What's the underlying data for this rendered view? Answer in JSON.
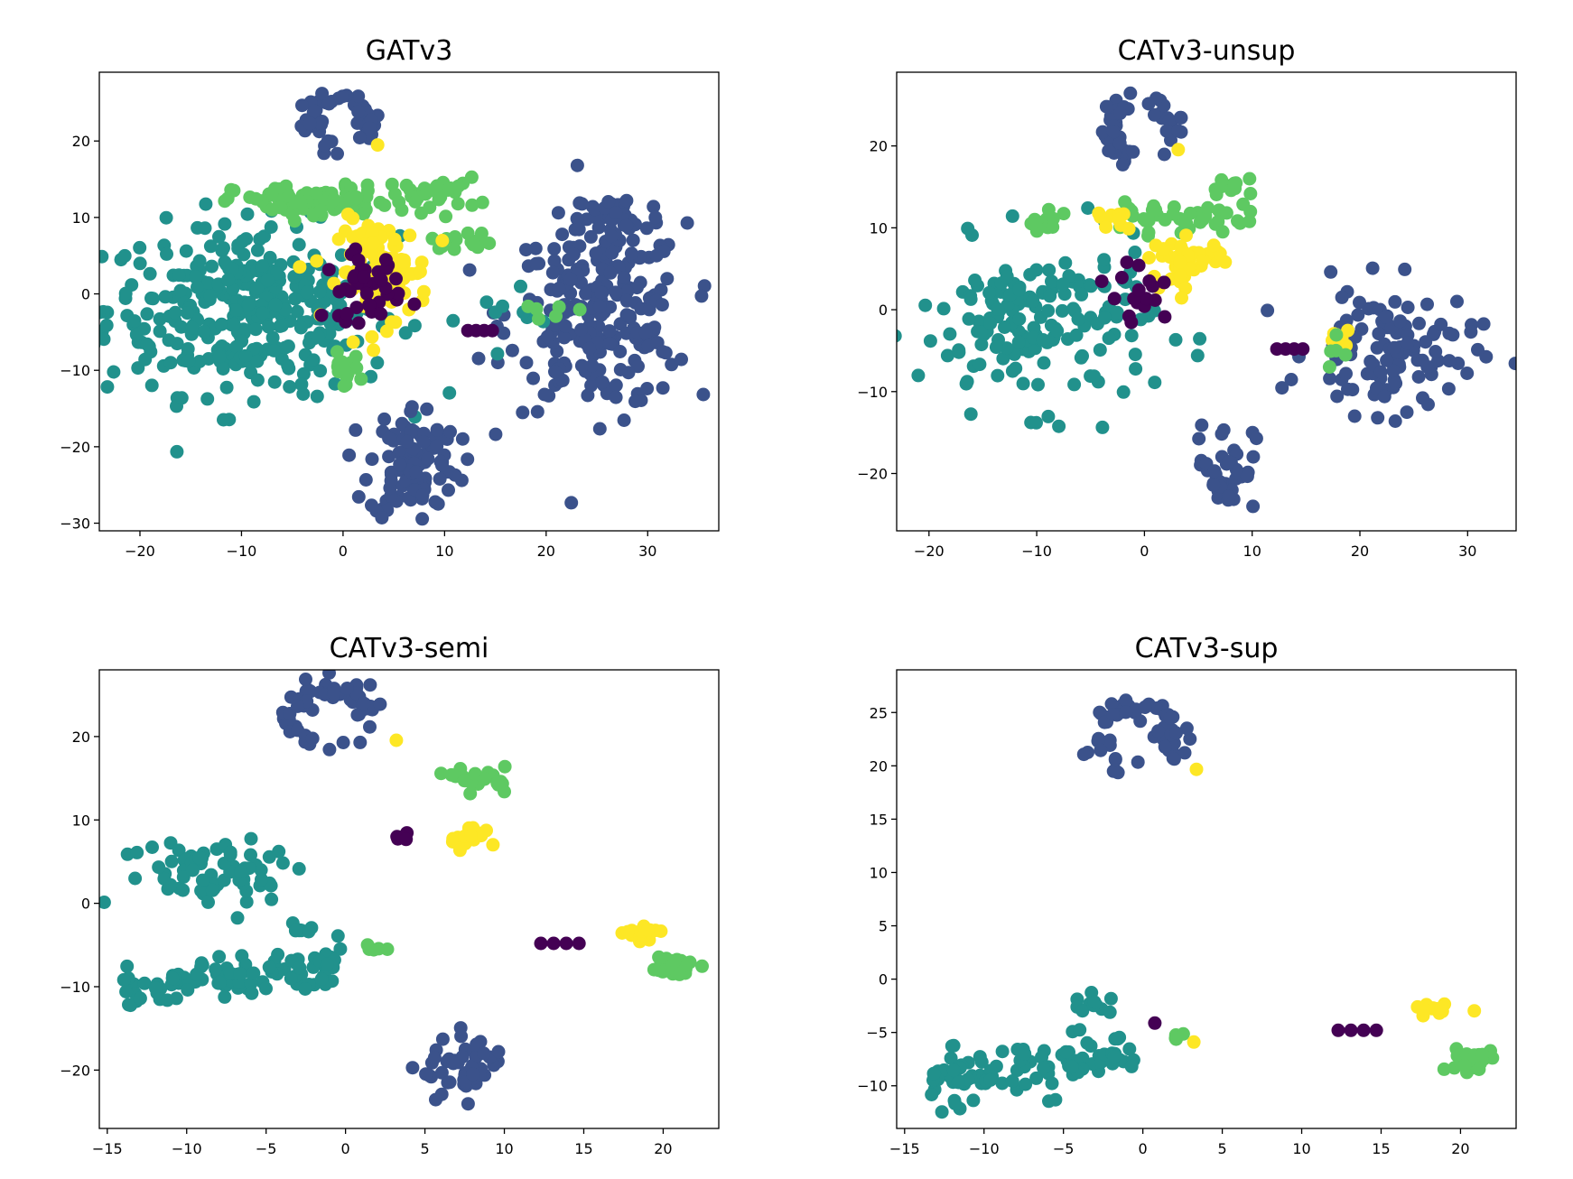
{
  "chart_data": [
    {
      "type": "scatter",
      "title": "GATv3",
      "xlabel": "",
      "ylabel": "",
      "xlim": [
        -24,
        37
      ],
      "ylim": [
        -31,
        29
      ],
      "xticks": [
        -20,
        -10,
        0,
        10,
        20,
        30
      ],
      "yticks": [
        -30,
        -20,
        -10,
        0,
        10,
        20
      ],
      "colors": {
        "purple": "#440154",
        "navy": "#3b528b",
        "teal": "#21918c",
        "green": "#5ec962",
        "yellow": "#fde725"
      },
      "clusters": [
        {
          "color": "teal",
          "shape": "ellipse",
          "cx": -9,
          "cy": -2,
          "sx": 13,
          "sy": 10,
          "n": 360
        },
        {
          "color": "navy",
          "shape": "ellipse",
          "cx": 25,
          "cy": -3,
          "sx": 8,
          "sy": 11,
          "n": 240
        },
        {
          "color": "navy",
          "shape": "ellipse",
          "cx": 27,
          "cy": 10,
          "sx": 4,
          "sy": 3,
          "n": 40
        },
        {
          "color": "navy",
          "shape": "ellipse",
          "cx": 7,
          "cy": -22,
          "sx": 4,
          "sy": 7,
          "n": 110
        },
        {
          "color": "navy",
          "shape": "hook",
          "cx": -0.5,
          "cy": 22,
          "sx": 3.5,
          "sy": 4,
          "n": 50
        },
        {
          "color": "green",
          "shape": "ellipse",
          "cx": -3,
          "cy": 12,
          "sx": 7,
          "sy": 2,
          "n": 90
        },
        {
          "color": "green",
          "shape": "ellipse",
          "cx": 9,
          "cy": 13,
          "sx": 4,
          "sy": 2,
          "n": 30
        },
        {
          "color": "green",
          "shape": "ellipse",
          "cx": 12,
          "cy": 7,
          "sx": 3,
          "sy": 1,
          "n": 15
        },
        {
          "color": "green",
          "shape": "ellipse",
          "cx": 0,
          "cy": -10,
          "sx": 1.5,
          "sy": 2,
          "n": 15
        },
        {
          "color": "yellow",
          "shape": "ellipse",
          "cx": 4,
          "cy": 3,
          "sx": 4,
          "sy": 6,
          "n": 110
        },
        {
          "color": "purple",
          "shape": "ellipse",
          "cx": 2,
          "cy": 1,
          "sx": 3.5,
          "sy": 4,
          "n": 40
        },
        {
          "color": "purple",
          "shape": "line",
          "cx": 13.5,
          "cy": -4.8,
          "sx": 1.2,
          "sy": 0,
          "n": 4
        },
        {
          "color": "yellow",
          "shape": "ellipse",
          "cx": 3.5,
          "cy": 19.5,
          "sx": 0.2,
          "sy": 0.2,
          "n": 1
        },
        {
          "color": "teal",
          "shape": "ellipse",
          "cx": 18,
          "cy": -3,
          "sx": 4,
          "sy": 3,
          "n": 8
        },
        {
          "color": "green",
          "shape": "ellipse",
          "cx": 20,
          "cy": -2,
          "sx": 3,
          "sy": 2,
          "n": 6
        }
      ]
    },
    {
      "type": "scatter",
      "title": "CATv3-unsup",
      "xlabel": "",
      "ylabel": "",
      "xlim": [
        -23,
        34.5
      ],
      "ylim": [
        -27,
        29
      ],
      "xticks": [
        -20,
        -10,
        0,
        10,
        20,
        30
      ],
      "yticks": [
        -20,
        -10,
        0,
        10,
        20
      ],
      "colors": {
        "purple": "#440154",
        "navy": "#3b528b",
        "teal": "#21918c",
        "green": "#5ec962",
        "yellow": "#fde725"
      },
      "clusters": [
        {
          "color": "teal",
          "shape": "ellipse",
          "cx": -10,
          "cy": -2,
          "sx": 10,
          "sy": 9,
          "n": 170
        },
        {
          "color": "navy",
          "shape": "ellipse",
          "cx": 23,
          "cy": -5,
          "sx": 7,
          "sy": 7,
          "n": 110
        },
        {
          "color": "navy",
          "shape": "ellipse",
          "cx": 7.5,
          "cy": -19,
          "sx": 2.5,
          "sy": 5,
          "n": 40
        },
        {
          "color": "navy",
          "shape": "hook",
          "cx": -0.5,
          "cy": 22,
          "sx": 3.5,
          "sy": 4,
          "n": 45
        },
        {
          "color": "green",
          "shape": "ellipse",
          "cx": 2,
          "cy": 11,
          "sx": 7,
          "sy": 1.5,
          "n": 40
        },
        {
          "color": "green",
          "shape": "ellipse",
          "cx": 8,
          "cy": 15,
          "sx": 2,
          "sy": 1.5,
          "n": 12
        },
        {
          "color": "green",
          "shape": "ellipse",
          "cx": -9,
          "cy": 10.5,
          "sx": 2,
          "sy": 1.5,
          "n": 12
        },
        {
          "color": "yellow",
          "shape": "ellipse",
          "cx": 4,
          "cy": 6,
          "sx": 3,
          "sy": 2.5,
          "n": 45
        },
        {
          "color": "yellow",
          "shape": "ellipse",
          "cx": -3,
          "cy": 11,
          "sx": 1.5,
          "sy": 1,
          "n": 10
        },
        {
          "color": "yellow",
          "shape": "ellipse",
          "cx": 18,
          "cy": -3.5,
          "sx": 1,
          "sy": 1,
          "n": 8
        },
        {
          "color": "purple",
          "shape": "ellipse",
          "cx": 0,
          "cy": 2,
          "sx": 3,
          "sy": 3.5,
          "n": 18
        },
        {
          "color": "purple",
          "shape": "line",
          "cx": 13.5,
          "cy": -4.8,
          "sx": 1.2,
          "sy": 0,
          "n": 4
        },
        {
          "color": "yellow",
          "shape": "ellipse",
          "cx": 3.2,
          "cy": 19.5,
          "sx": 0.2,
          "sy": 0.2,
          "n": 1
        },
        {
          "color": "green",
          "shape": "ellipse",
          "cx": 17.5,
          "cy": -6,
          "sx": 1,
          "sy": 3,
          "n": 5
        }
      ]
    },
    {
      "type": "scatter",
      "title": "CATv3-semi",
      "xlabel": "",
      "ylabel": "",
      "xlim": [
        -15.5,
        23.5
      ],
      "ylim": [
        -27,
        28
      ],
      "xticks": [
        -15,
        -10,
        -5,
        0,
        5,
        10,
        15,
        20
      ],
      "yticks": [
        -20,
        -10,
        0,
        10,
        20
      ],
      "colors": {
        "purple": "#440154",
        "navy": "#3b528b",
        "teal": "#21918c",
        "green": "#5ec962",
        "yellow": "#fde725"
      },
      "clusters": [
        {
          "color": "teal",
          "shape": "ellipse",
          "cx": -8,
          "cy": 4,
          "sx": 5.5,
          "sy": 4,
          "n": 70
        },
        {
          "color": "teal",
          "shape": "band",
          "cx": -7,
          "cy": -9,
          "sx": 7,
          "sy": 2.2,
          "n": 100
        },
        {
          "color": "teal",
          "shape": "ellipse",
          "cx": -3,
          "cy": -3,
          "sx": 1,
          "sy": 0.8,
          "n": 8
        },
        {
          "color": "navy",
          "shape": "hook",
          "cx": -1,
          "cy": 22.5,
          "sx": 3,
          "sy": 4,
          "n": 60
        },
        {
          "color": "navy",
          "shape": "ellipse",
          "cx": 7.5,
          "cy": -20,
          "sx": 2.5,
          "sy": 3.5,
          "n": 50
        },
        {
          "color": "green",
          "shape": "ellipse",
          "cx": 8.5,
          "cy": 15,
          "sx": 1.5,
          "sy": 1.2,
          "n": 25
        },
        {
          "color": "green",
          "shape": "ellipse",
          "cx": 20.5,
          "cy": -7.5,
          "sx": 1.3,
          "sy": 1,
          "n": 30
        },
        {
          "color": "yellow",
          "shape": "ellipse",
          "cx": 8,
          "cy": 8,
          "sx": 1.5,
          "sy": 1.5,
          "n": 15
        },
        {
          "color": "yellow",
          "shape": "ellipse",
          "cx": 18.5,
          "cy": -3.5,
          "sx": 1.2,
          "sy": 0.8,
          "n": 15
        },
        {
          "color": "purple",
          "shape": "ellipse",
          "cx": 3.5,
          "cy": 8,
          "sx": 0.6,
          "sy": 0.5,
          "n": 5
        },
        {
          "color": "purple",
          "shape": "line",
          "cx": 13.5,
          "cy": -4.8,
          "sx": 1.2,
          "sy": 0,
          "n": 4
        },
        {
          "color": "green",
          "shape": "ellipse",
          "cx": 2,
          "cy": -5.5,
          "sx": 1,
          "sy": 0.5,
          "n": 5
        },
        {
          "color": "yellow",
          "shape": "ellipse",
          "cx": 3.3,
          "cy": 19.5,
          "sx": 0.2,
          "sy": 0.2,
          "n": 1
        }
      ]
    },
    {
      "type": "scatter",
      "title": "CATv3-sup",
      "xlabel": "",
      "ylabel": "",
      "xlim": [
        -15.5,
        23.5
      ],
      "ylim": [
        -14,
        29
      ],
      "xticks": [
        -15,
        -10,
        -5,
        0,
        5,
        10,
        15,
        20
      ],
      "yticks": [
        -10,
        -5,
        0,
        5,
        10,
        15,
        20,
        25
      ],
      "colors": {
        "purple": "#440154",
        "navy": "#3b528b",
        "teal": "#21918c",
        "green": "#5ec962",
        "yellow": "#fde725"
      },
      "clusters": [
        {
          "color": "teal",
          "shape": "band",
          "cx": -7,
          "cy": -8.5,
          "sx": 6.5,
          "sy": 2,
          "n": 100
        },
        {
          "color": "teal",
          "shape": "ellipse",
          "cx": -3,
          "cy": -2.5,
          "sx": 1.5,
          "sy": 0.8,
          "n": 10
        },
        {
          "color": "navy",
          "shape": "hook",
          "cx": -0.5,
          "cy": 22.5,
          "sx": 3,
          "sy": 3.5,
          "n": 60
        },
        {
          "color": "green",
          "shape": "ellipse",
          "cx": 20.5,
          "cy": -7.5,
          "sx": 1.3,
          "sy": 1,
          "n": 35
        },
        {
          "color": "yellow",
          "shape": "ellipse",
          "cx": 18.5,
          "cy": -3,
          "sx": 1.2,
          "sy": 0.7,
          "n": 15
        },
        {
          "color": "purple",
          "shape": "line",
          "cx": 13.5,
          "cy": -4.8,
          "sx": 1.2,
          "sy": 0,
          "n": 4
        },
        {
          "color": "purple",
          "shape": "ellipse",
          "cx": 0.8,
          "cy": -4.2,
          "sx": 0.1,
          "sy": 0.1,
          "n": 1
        },
        {
          "color": "green",
          "shape": "ellipse",
          "cx": 2.5,
          "cy": -5.5,
          "sx": 0.8,
          "sy": 0.5,
          "n": 4
        },
        {
          "color": "yellow",
          "shape": "ellipse",
          "cx": 3.3,
          "cy": 19.5,
          "sx": 0.2,
          "sy": 0.2,
          "n": 1
        },
        {
          "color": "yellow",
          "shape": "ellipse",
          "cx": 3.3,
          "cy": -5.8,
          "sx": 0.1,
          "sy": 0.1,
          "n": 1
        }
      ]
    }
  ]
}
